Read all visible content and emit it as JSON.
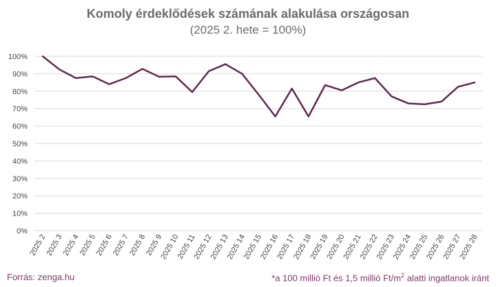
{
  "chart_data": {
    "type": "line",
    "title": "Komoly érdeklődések számának alakulása országosan",
    "subtitle": "(2025 2. hete = 100%)",
    "categories": [
      "2025 2",
      "2025 3",
      "2025 4",
      "2025 5",
      "2025 6",
      "2025 7",
      "2025 8",
      "2025 9",
      "2025 10",
      "2025 11",
      "2025 12",
      "2025 13",
      "2025 14",
      "2025 15",
      "2025 16",
      "2025 17",
      "2025 18",
      "2025 19",
      "2025 20",
      "2025 21",
      "2025 22",
      "2025 23",
      "2025 24",
      "2025 25",
      "2025 26",
      "2025 27",
      "2025 28"
    ],
    "series": [
      {
        "values": [
          100,
          92.5,
          87.5,
          88.5,
          84,
          87.5,
          92.8,
          88.3,
          88.5,
          79.5,
          91.5,
          95.5,
          90,
          78,
          65.5,
          81.5,
          65.5,
          83.5,
          80.5,
          85,
          87.5,
          77,
          73,
          72.5,
          74,
          82.5,
          85
        ],
        "color": "#5e2a4e"
      }
    ],
    "yticks": [
      "100%",
      "90%",
      "80%",
      "70%",
      "60%",
      "50%",
      "40%",
      "30%",
      "20%",
      "10%",
      "0%"
    ],
    "ylim": [
      0,
      100
    ],
    "grid": true,
    "legend": "none"
  },
  "footer": {
    "source": "Forrás: zenga.hu",
    "note_prefix": "*a 100 millió Ft és 1,5 millió Ft/m",
    "note_sup": "2",
    "note_suffix": " alatti ingatlanok iránt"
  },
  "colors": {
    "line": "#5e2a4e",
    "grid": "#d9d9d9",
    "footer": "#7b3a68",
    "title": "#6b6b6b"
  }
}
